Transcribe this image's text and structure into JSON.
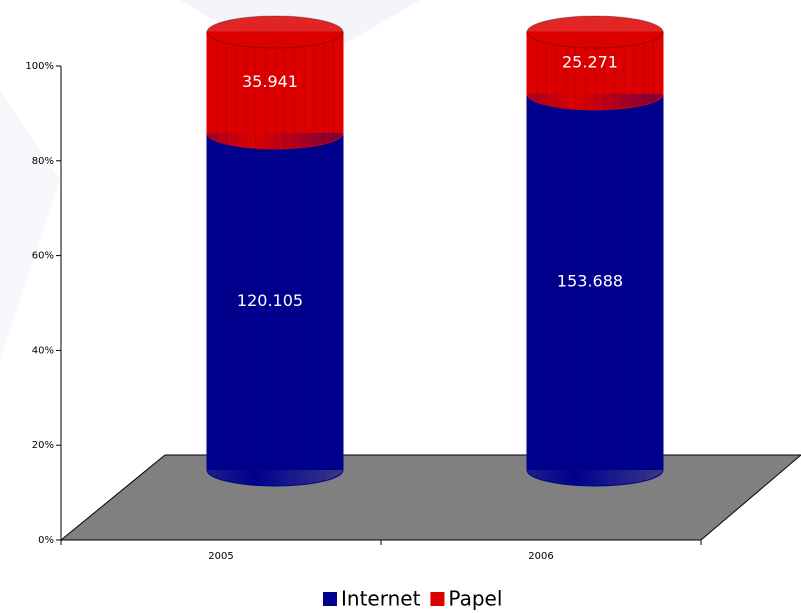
{
  "chart_data": {
    "type": "bar",
    "stacking": "percent",
    "categories": [
      "2005",
      "2006"
    ],
    "series": [
      {
        "name": "Internet",
        "color": "#00008f",
        "values": [
          120105,
          153688
        ],
        "value_labels": [
          "120.105",
          "153.688"
        ]
      },
      {
        "name": "Papel",
        "color": "#dd0000",
        "values": [
          35941,
          25271
        ],
        "value_labels": [
          "35.941",
          "25.271"
        ]
      }
    ],
    "ylim": [
      0,
      100
    ],
    "yticks": [
      {
        "value": 0,
        "label": "0%"
      },
      {
        "value": 20,
        "label": "20%"
      },
      {
        "value": 40,
        "label": "40%"
      },
      {
        "value": 60,
        "label": "60%"
      },
      {
        "value": 80,
        "label": "80%"
      },
      {
        "value": 100,
        "label": "100%"
      }
    ]
  }
}
